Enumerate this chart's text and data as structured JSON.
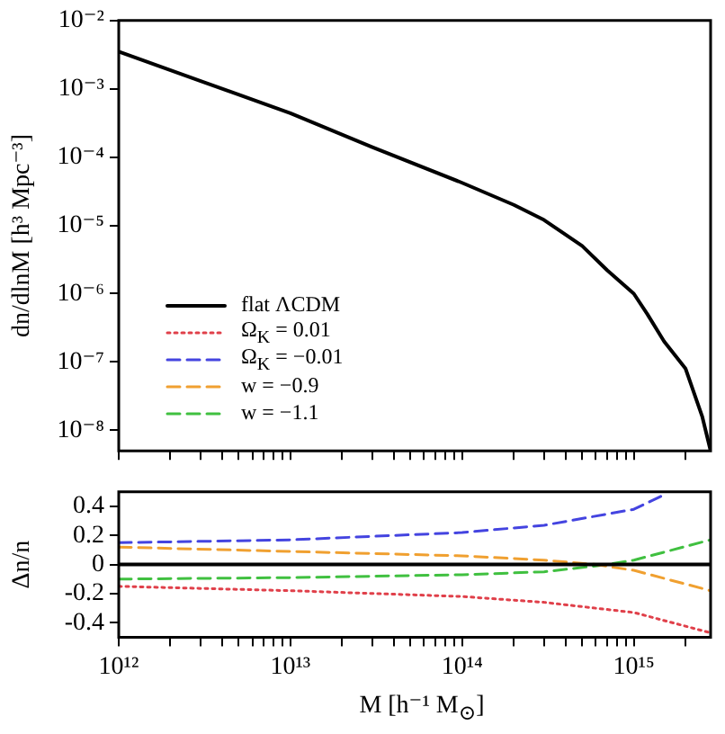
{
  "chart_data": [
    {
      "type": "line",
      "ylabel": "dn/dlnM [h³ Mpc⁻³]",
      "log": "xy",
      "grid": false,
      "tick_labels": "y",
      "marker": "none",
      "xlim": [
        1000000000000.0,
        2800000000000000.0
      ],
      "xticks": [
        {
          "value": 1000000000000.0,
          "label": null
        },
        {
          "value": 2000000000000.0,
          "label": null
        },
        {
          "value": 3000000000000.0,
          "label": null
        },
        {
          "value": 4000000000000.0,
          "label": null
        },
        {
          "value": 5000000000000.0,
          "label": null
        },
        {
          "value": 6000000000000.0,
          "label": null
        },
        {
          "value": 7000000000000.0,
          "label": null
        },
        {
          "value": 8000000000000.0,
          "label": null
        },
        {
          "value": 9000000000000.0,
          "label": null
        },
        {
          "value": 10000000000000.0,
          "label": null
        },
        {
          "value": 20000000000000.0,
          "label": null
        },
        {
          "value": 30000000000000.0,
          "label": null
        },
        {
          "value": 40000000000000.0,
          "label": null
        },
        {
          "value": 50000000000000.0,
          "label": null
        },
        {
          "value": 60000000000000.0,
          "label": null
        },
        {
          "value": 70000000000000.0,
          "label": null
        },
        {
          "value": 80000000000000.0,
          "label": null
        },
        {
          "value": 90000000000000.0,
          "label": null
        },
        {
          "value": 100000000000000.0,
          "label": null
        },
        {
          "value": 200000000000000.0,
          "label": null
        },
        {
          "value": 300000000000000.0,
          "label": null
        },
        {
          "value": 400000000000000.0,
          "label": null
        },
        {
          "value": 500000000000000.0,
          "label": null
        },
        {
          "value": 600000000000000.0,
          "label": null
        },
        {
          "value": 700000000000000.0,
          "label": null
        },
        {
          "value": 800000000000000.0,
          "label": null
        },
        {
          "value": 900000000000000.0,
          "label": null
        },
        {
          "value": 1000000000000000.0,
          "label": null
        },
        {
          "value": 2000000000000000.0,
          "label": null
        }
      ],
      "ylim": [
        5e-09,
        0.01
      ],
      "yticks": [
        {
          "value": 1e-08,
          "label": "10⁻⁸"
        },
        {
          "value": 1e-07,
          "label": "10⁻⁷"
        },
        {
          "value": 1e-06,
          "label": "10⁻⁶"
        },
        {
          "value": 1e-05,
          "label": "10⁻⁵"
        },
        {
          "value": 0.0001,
          "label": "10⁻⁴"
        },
        {
          "value": 0.001,
          "label": "10⁻³"
        },
        {
          "value": 0.01,
          "label": "10⁻²"
        }
      ],
      "series": [
        {
          "color": "#000000",
          "line_style": "solid",
          "x": [
            1000000000000.0,
            3000000000000.0,
            10000000000000.0,
            30000000000000.0,
            100000000000000.0,
            200000000000000.0,
            300000000000000.0,
            500000000000000.0,
            700000000000000.0,
            1000000000000000.0,
            1200000000000000.0,
            1500000000000000.0,
            2000000000000000.0,
            2500000000000000.0,
            2800000000000000.0
          ],
          "values": [
            0.0035,
            0.0013,
            0.00044,
            0.00014,
            4.2e-05,
            2e-05,
            1.2e-05,
            5e-06,
            2.2e-06,
            1e-06,
            5e-07,
            2e-07,
            8e-08,
            1.6e-08,
            5e-09
          ]
        }
      ]
    },
    {
      "type": "line",
      "xlabel": "M [h⁻¹ M$_{⊙}$]",
      "ylabel": "Δn/n",
      "log": "x",
      "grid": false,
      "legend": "top",
      "marker": "none",
      "xlim": [
        1000000000000.0,
        2800000000000000.0
      ],
      "xticks": [
        {
          "value": 1000000000000.0,
          "label": "10¹²"
        },
        {
          "value": 2000000000000.0,
          "label": null
        },
        {
          "value": 3000000000000.0,
          "label": null
        },
        {
          "value": 4000000000000.0,
          "label": null
        },
        {
          "value": 5000000000000.0,
          "label": null
        },
        {
          "value": 6000000000000.0,
          "label": null
        },
        {
          "value": 7000000000000.0,
          "label": null
        },
        {
          "value": 8000000000000.0,
          "label": null
        },
        {
          "value": 9000000000000.0,
          "label": null
        },
        {
          "value": 10000000000000.0,
          "label": "10¹³"
        },
        {
          "value": 20000000000000.0,
          "label": null
        },
        {
          "value": 30000000000000.0,
          "label": null
        },
        {
          "value": 40000000000000.0,
          "label": null
        },
        {
          "value": 50000000000000.0,
          "label": null
        },
        {
          "value": 60000000000000.0,
          "label": null
        },
        {
          "value": 70000000000000.0,
          "label": null
        },
        {
          "value": 80000000000000.0,
          "label": null
        },
        {
          "value": 90000000000000.0,
          "label": null
        },
        {
          "value": 100000000000000.0,
          "label": "10¹⁴"
        },
        {
          "value": 200000000000000.0,
          "label": null
        },
        {
          "value": 300000000000000.0,
          "label": null
        },
        {
          "value": 400000000000000.0,
          "label": null
        },
        {
          "value": 500000000000000.0,
          "label": null
        },
        {
          "value": 600000000000000.0,
          "label": null
        },
        {
          "value": 700000000000000.0,
          "label": null
        },
        {
          "value": 800000000000000.0,
          "label": null
        },
        {
          "value": 900000000000000.0,
          "label": null
        },
        {
          "value": 1000000000000000.0,
          "label": "10¹⁵"
        },
        {
          "value": 2000000000000000.0,
          "label": null
        }
      ],
      "ylim": [
        -0.5,
        0.5
      ],
      "yticks": [
        -0.4,
        -0.2,
        0,
        0.2,
        0.4
      ],
      "series": [
        {
          "name": "flat ΛCDM",
          "color": "#000000",
          "line_style": "solid",
          "x": [
            1000000000000.0,
            2800000000000000.0
          ],
          "values": [
            0,
            0
          ]
        },
        {
          "name": "Ω$_{K}$ = 0.01",
          "color": "#e0404a",
          "line_style": "dotted",
          "x": [
            1000000000000.0,
            10000000000000.0,
            100000000000000.0,
            300000000000000.0,
            1000000000000000.0,
            2800000000000000.0
          ],
          "values": [
            -0.15,
            -0.18,
            -0.22,
            -0.26,
            -0.33,
            -0.47
          ]
        },
        {
          "name": "Ω$_{K}$ = −0.01",
          "color": "#4444e0",
          "line_style": "dashed",
          "x": [
            1000000000000.0,
            10000000000000.0,
            100000000000000.0,
            300000000000000.0,
            1000000000000000.0,
            1500000000000000.0
          ],
          "values": [
            0.15,
            0.17,
            0.22,
            0.27,
            0.38,
            0.48
          ]
        },
        {
          "name": "w = −0.9",
          "color": "#f0a030",
          "line_style": "dashed",
          "x": [
            1000000000000.0,
            10000000000000.0,
            100000000000000.0,
            300000000000000.0,
            600000000000000.0,
            1000000000000000.0,
            2800000000000000.0
          ],
          "values": [
            0.12,
            0.09,
            0.06,
            0.03,
            0,
            -0.04,
            -0.18
          ]
        },
        {
          "name": "w = −1.1",
          "color": "#40c040",
          "line_style": "dashed",
          "x": [
            1000000000000.0,
            10000000000000.0,
            100000000000000.0,
            300000000000000.0,
            700000000000000.0,
            1000000000000000.0,
            2800000000000000.0
          ],
          "values": [
            -0.1,
            -0.09,
            -0.07,
            -0.05,
            0,
            0.03,
            0.17
          ]
        }
      ]
    }
  ]
}
